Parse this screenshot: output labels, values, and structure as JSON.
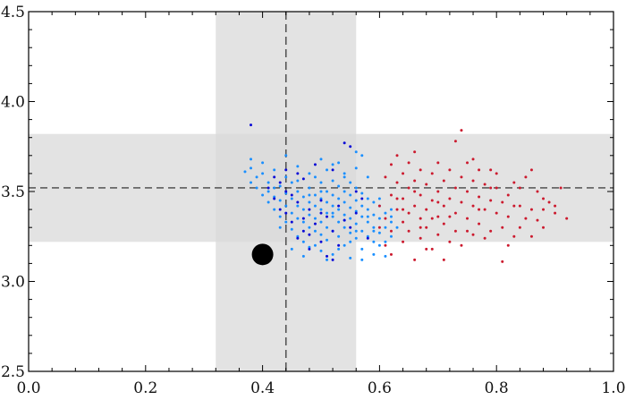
{
  "chart_data": {
    "type": "scatter",
    "title": "",
    "xlabel": "",
    "ylabel": "",
    "xlim": [
      0.0,
      1.0
    ],
    "ylim": [
      2.5,
      4.5
    ],
    "x_ticks": [
      0.0,
      0.2,
      0.4,
      0.6,
      0.8,
      1.0
    ],
    "x_tick_labels": [
      "0.0",
      "0.2",
      "0.4",
      "0.6",
      "0.8",
      "1.0"
    ],
    "y_ticks": [
      2.5,
      3.0,
      3.5,
      4.0,
      4.5
    ],
    "y_tick_labels": [
      "2.5",
      "3.0",
      "3.5",
      "4.0",
      "4.5"
    ],
    "grid": false,
    "bands": {
      "color": "#d9d9d9",
      "vertical": [
        0.32,
        0.56
      ],
      "horizontal": [
        3.22,
        3.82
      ]
    },
    "reference_lines": {
      "color": "#555555",
      "x": 0.44,
      "y": 3.52
    },
    "highlight_point": {
      "x": 0.4,
      "y": 3.15,
      "color": "#000000"
    },
    "series": [
      {
        "color": "#1a8fff",
        "points": [
          [
            0.37,
            3.61
          ],
          [
            0.38,
            3.55
          ],
          [
            0.38,
            3.63
          ],
          [
            0.39,
            3.52
          ],
          [
            0.39,
            3.58
          ],
          [
            0.4,
            3.48
          ],
          [
            0.4,
            3.6
          ],
          [
            0.41,
            3.5
          ],
          [
            0.41,
            3.55
          ],
          [
            0.41,
            3.44
          ],
          [
            0.42,
            3.47
          ],
          [
            0.42,
            3.52
          ],
          [
            0.42,
            3.4
          ],
          [
            0.43,
            3.45
          ],
          [
            0.43,
            3.53
          ],
          [
            0.43,
            3.36
          ],
          [
            0.44,
            3.42
          ],
          [
            0.44,
            3.49
          ],
          [
            0.44,
            3.58
          ],
          [
            0.44,
            3.33
          ],
          [
            0.45,
            3.38
          ],
          [
            0.45,
            3.46
          ],
          [
            0.45,
            3.29
          ],
          [
            0.45,
            3.55
          ],
          [
            0.46,
            3.35
          ],
          [
            0.46,
            3.42
          ],
          [
            0.46,
            3.5
          ],
          [
            0.46,
            3.25
          ],
          [
            0.47,
            3.33
          ],
          [
            0.47,
            3.4
          ],
          [
            0.47,
            3.47
          ],
          [
            0.47,
            3.22
          ],
          [
            0.48,
            3.3
          ],
          [
            0.48,
            3.37
          ],
          [
            0.48,
            3.44
          ],
          [
            0.48,
            3.52
          ],
          [
            0.48,
            3.19
          ],
          [
            0.49,
            3.28
          ],
          [
            0.49,
            3.35
          ],
          [
            0.49,
            3.42
          ],
          [
            0.49,
            3.48
          ],
          [
            0.49,
            3.58
          ],
          [
            0.5,
            3.26
          ],
          [
            0.5,
            3.33
          ],
          [
            0.5,
            3.4
          ],
          [
            0.5,
            3.46
          ],
          [
            0.5,
            3.55
          ],
          [
            0.5,
            3.17
          ],
          [
            0.51,
            3.3
          ],
          [
            0.51,
            3.38
          ],
          [
            0.51,
            3.44
          ],
          [
            0.51,
            3.5
          ],
          [
            0.51,
            3.62
          ],
          [
            0.51,
            3.23
          ],
          [
            0.52,
            3.28
          ],
          [
            0.52,
            3.36
          ],
          [
            0.52,
            3.42
          ],
          [
            0.52,
            3.48
          ],
          [
            0.52,
            3.56
          ],
          [
            0.52,
            3.15
          ],
          [
            0.53,
            3.25
          ],
          [
            0.53,
            3.33
          ],
          [
            0.53,
            3.4
          ],
          [
            0.53,
            3.46
          ],
          [
            0.53,
            3.53
          ],
          [
            0.53,
            3.66
          ],
          [
            0.54,
            3.3
          ],
          [
            0.54,
            3.37
          ],
          [
            0.54,
            3.44
          ],
          [
            0.54,
            3.5
          ],
          [
            0.54,
            3.2
          ],
          [
            0.54,
            3.6
          ],
          [
            0.55,
            3.27
          ],
          [
            0.55,
            3.35
          ],
          [
            0.55,
            3.41
          ],
          [
            0.55,
            3.48
          ],
          [
            0.55,
            3.55
          ],
          [
            0.55,
            3.13
          ],
          [
            0.56,
            3.24
          ],
          [
            0.56,
            3.32
          ],
          [
            0.56,
            3.39
          ],
          [
            0.56,
            3.45
          ],
          [
            0.56,
            3.52
          ],
          [
            0.56,
            3.63
          ],
          [
            0.57,
            3.28
          ],
          [
            0.57,
            3.36
          ],
          [
            0.57,
            3.42
          ],
          [
            0.57,
            3.49
          ],
          [
            0.57,
            3.18
          ],
          [
            0.57,
            3.7
          ],
          [
            0.58,
            3.25
          ],
          [
            0.58,
            3.33
          ],
          [
            0.58,
            3.4
          ],
          [
            0.58,
            3.46
          ],
          [
            0.58,
            3.58
          ],
          [
            0.59,
            3.22
          ],
          [
            0.59,
            3.3
          ],
          [
            0.59,
            3.37
          ],
          [
            0.59,
            3.44
          ],
          [
            0.59,
            3.15
          ],
          [
            0.6,
            3.27
          ],
          [
            0.6,
            3.35
          ],
          [
            0.6,
            3.42
          ],
          [
            0.6,
            3.2
          ],
          [
            0.61,
            3.3
          ],
          [
            0.61,
            3.38
          ],
          [
            0.61,
            3.14
          ],
          [
            0.62,
            3.25
          ],
          [
            0.62,
            3.33
          ],
          [
            0.62,
            3.4
          ],
          [
            0.38,
            3.68
          ],
          [
            0.4,
            3.66
          ],
          [
            0.42,
            3.62
          ],
          [
            0.44,
            3.7
          ],
          [
            0.46,
            3.64
          ],
          [
            0.48,
            3.6
          ],
          [
            0.5,
            3.68
          ],
          [
            0.52,
            3.65
          ],
          [
            0.54,
            3.58
          ],
          [
            0.56,
            3.72
          ],
          [
            0.43,
            3.3
          ],
          [
            0.45,
            3.18
          ],
          [
            0.47,
            3.14
          ],
          [
            0.49,
            3.2
          ],
          [
            0.51,
            3.12
          ],
          [
            0.53,
            3.18
          ],
          [
            0.55,
            3.22
          ],
          [
            0.57,
            3.12
          ],
          [
            0.59,
            3.28
          ],
          [
            0.61,
            3.22
          ],
          [
            0.46,
            3.56
          ],
          [
            0.48,
            3.48
          ],
          [
            0.5,
            3.5
          ],
          [
            0.52,
            3.38
          ],
          [
            0.54,
            3.34
          ],
          [
            0.56,
            3.28
          ],
          [
            0.58,
            3.36
          ],
          [
            0.6,
            3.46
          ],
          [
            0.62,
            3.36
          ],
          [
            0.63,
            3.3
          ]
        ]
      },
      {
        "color": "#0a0ad6",
        "points": [
          [
            0.38,
            3.87
          ],
          [
            0.41,
            3.52
          ],
          [
            0.42,
            3.46
          ],
          [
            0.43,
            3.55
          ],
          [
            0.44,
            3.38
          ],
          [
            0.44,
            3.62
          ],
          [
            0.45,
            3.33
          ],
          [
            0.45,
            3.48
          ],
          [
            0.46,
            3.24
          ],
          [
            0.46,
            3.44
          ],
          [
            0.47,
            3.28
          ],
          [
            0.47,
            3.57
          ],
          [
            0.48,
            3.18
          ],
          [
            0.48,
            3.4
          ],
          [
            0.49,
            3.32
          ],
          [
            0.49,
            3.65
          ],
          [
            0.5,
            3.22
          ],
          [
            0.5,
            3.45
          ],
          [
            0.51,
            3.14
          ],
          [
            0.51,
            3.36
          ],
          [
            0.52,
            3.28
          ],
          [
            0.52,
            3.62
          ],
          [
            0.53,
            3.2
          ],
          [
            0.53,
            3.42
          ],
          [
            0.54,
            3.77
          ],
          [
            0.55,
            3.75
          ],
          [
            0.55,
            3.3
          ],
          [
            0.56,
            3.38
          ],
          [
            0.57,
            3.46
          ],
          [
            0.58,
            3.24
          ],
          [
            0.42,
            3.58
          ],
          [
            0.44,
            3.5
          ],
          [
            0.46,
            3.6
          ],
          [
            0.48,
            3.26
          ],
          [
            0.5,
            3.38
          ],
          [
            0.52,
            3.12
          ],
          [
            0.54,
            3.34
          ],
          [
            0.56,
            3.5
          ],
          [
            0.43,
            3.4
          ],
          [
            0.47,
            3.35
          ]
        ]
      },
      {
        "color": "#cc1a2e",
        "points": [
          [
            0.6,
            3.42
          ],
          [
            0.61,
            3.58
          ],
          [
            0.61,
            3.35
          ],
          [
            0.62,
            3.48
          ],
          [
            0.62,
            3.65
          ],
          [
            0.62,
            3.28
          ],
          [
            0.63,
            3.4
          ],
          [
            0.63,
            3.55
          ],
          [
            0.63,
            3.7
          ],
          [
            0.64,
            3.33
          ],
          [
            0.64,
            3.46
          ],
          [
            0.64,
            3.6
          ],
          [
            0.64,
            3.22
          ],
          [
            0.65,
            3.38
          ],
          [
            0.65,
            3.52
          ],
          [
            0.65,
            3.66
          ],
          [
            0.65,
            3.28
          ],
          [
            0.66,
            3.42
          ],
          [
            0.66,
            3.56
          ],
          [
            0.66,
            3.12
          ],
          [
            0.67,
            3.35
          ],
          [
            0.67,
            3.48
          ],
          [
            0.67,
            3.62
          ],
          [
            0.67,
            3.24
          ],
          [
            0.68,
            3.4
          ],
          [
            0.68,
            3.54
          ],
          [
            0.68,
            3.3
          ],
          [
            0.69,
            3.45
          ],
          [
            0.69,
            3.6
          ],
          [
            0.69,
            3.18
          ],
          [
            0.7,
            3.36
          ],
          [
            0.7,
            3.5
          ],
          [
            0.7,
            3.66
          ],
          [
            0.7,
            3.26
          ],
          [
            0.71,
            3.42
          ],
          [
            0.71,
            3.56
          ],
          [
            0.71,
            3.32
          ],
          [
            0.72,
            3.46
          ],
          [
            0.72,
            3.62
          ],
          [
            0.72,
            3.22
          ],
          [
            0.73,
            3.38
          ],
          [
            0.73,
            3.52
          ],
          [
            0.73,
            3.78
          ],
          [
            0.73,
            3.28
          ],
          [
            0.74,
            3.44
          ],
          [
            0.74,
            3.58
          ],
          [
            0.74,
            3.84
          ],
          [
            0.75,
            3.35
          ],
          [
            0.75,
            3.5
          ],
          [
            0.75,
            3.66
          ],
          [
            0.76,
            3.42
          ],
          [
            0.76,
            3.56
          ],
          [
            0.76,
            3.26
          ],
          [
            0.77,
            3.47
          ],
          [
            0.77,
            3.62
          ],
          [
            0.77,
            3.32
          ],
          [
            0.78,
            3.4
          ],
          [
            0.78,
            3.54
          ],
          [
            0.79,
            3.45
          ],
          [
            0.79,
            3.62
          ],
          [
            0.79,
            3.28
          ],
          [
            0.8,
            3.38
          ],
          [
            0.8,
            3.52
          ],
          [
            0.81,
            3.44
          ],
          [
            0.81,
            3.3
          ],
          [
            0.81,
            3.11
          ],
          [
            0.82,
            3.48
          ],
          [
            0.82,
            3.36
          ],
          [
            0.83,
            3.55
          ],
          [
            0.83,
            3.25
          ],
          [
            0.84,
            3.42
          ],
          [
            0.84,
            3.3
          ],
          [
            0.85,
            3.58
          ],
          [
            0.86,
            3.4
          ],
          [
            0.86,
            3.62
          ],
          [
            0.87,
            3.34
          ],
          [
            0.88,
            3.46
          ],
          [
            0.88,
            3.3
          ],
          [
            0.9,
            3.38
          ],
          [
            0.92,
            3.35
          ],
          [
            0.6,
            3.3
          ],
          [
            0.61,
            3.2
          ],
          [
            0.62,
            3.15
          ],
          [
            0.63,
            3.46
          ],
          [
            0.66,
            3.72
          ],
          [
            0.68,
            3.18
          ],
          [
            0.69,
            3.35
          ],
          [
            0.71,
            3.12
          ],
          [
            0.74,
            3.2
          ],
          [
            0.76,
            3.68
          ],
          [
            0.78,
            3.24
          ],
          [
            0.8,
            3.6
          ],
          [
            0.82,
            3.2
          ],
          [
            0.83,
            3.42
          ],
          [
            0.85,
            3.35
          ],
          [
            0.87,
            3.5
          ],
          [
            0.89,
            3.44
          ],
          [
            0.91,
            3.52
          ],
          [
            0.64,
            3.4
          ],
          [
            0.66,
            3.5
          ],
          [
            0.72,
            3.36
          ],
          [
            0.77,
            3.4
          ],
          [
            0.79,
            3.52
          ],
          [
            0.84,
            3.52
          ],
          [
            0.86,
            3.25
          ],
          [
            0.88,
            3.4
          ],
          [
            0.9,
            3.42
          ],
          [
            0.7,
            3.44
          ],
          [
            0.75,
            3.28
          ],
          [
            0.67,
            3.3
          ]
        ]
      }
    ]
  }
}
